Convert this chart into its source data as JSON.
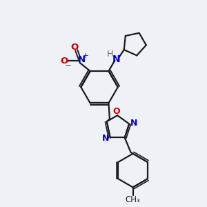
{
  "bg_color": "#eef2f7",
  "bond_color": "#1a1a1a",
  "N_color": "#0000cc",
  "O_color": "#cc0000",
  "H_color": "#666666",
  "line_width": 1.6,
  "fig_w": 3.0,
  "fig_h": 3.0,
  "dpi": 100,
  "xlim": [
    0,
    10
  ],
  "ylim": [
    0,
    10
  ]
}
